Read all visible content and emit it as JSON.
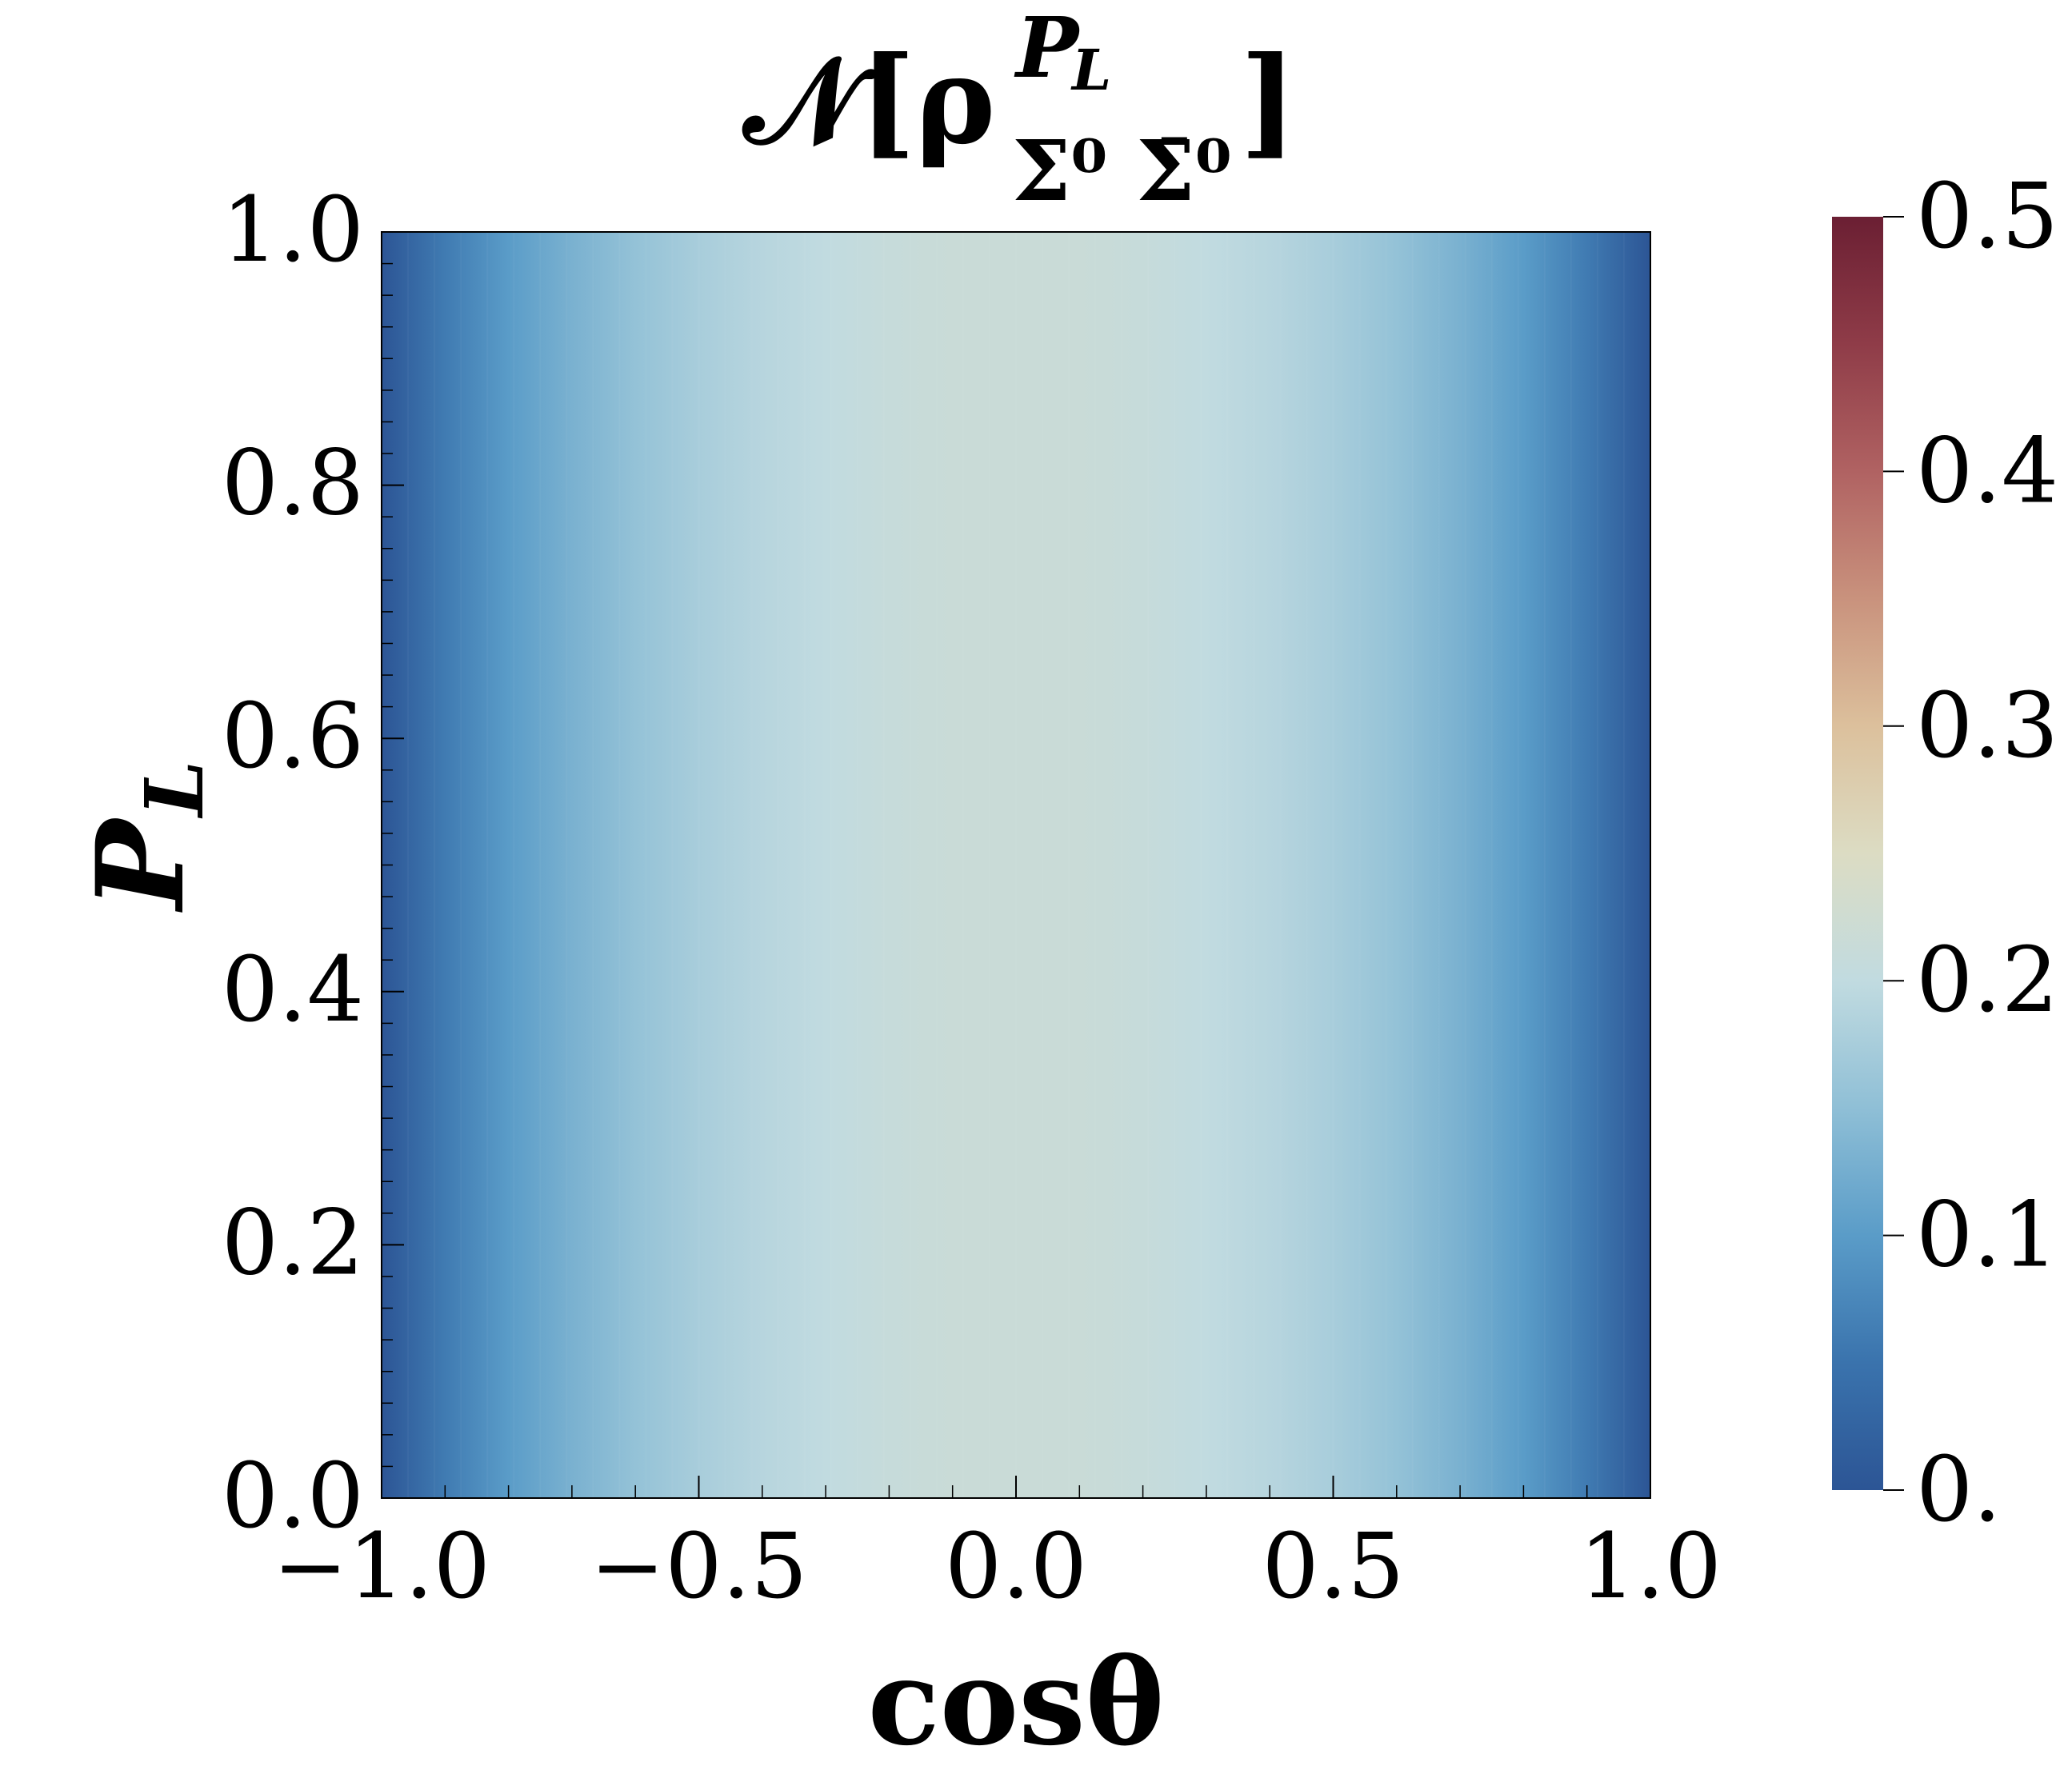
{
  "chart_data": {
    "type": "heatmap",
    "title": {
      "prefix": "𝒩[ρ",
      "superscript": "P",
      "superscript_sub": "L",
      "subscript": "Σ⁰ Σ̄⁰",
      "suffix": "]"
    },
    "xlabel": "cosθ",
    "ylabel": {
      "main": "P",
      "sub": "L"
    },
    "xlim": [
      -1.0,
      1.0
    ],
    "ylim": [
      0.0,
      1.0
    ],
    "x_ticks": [
      -1.0,
      -0.5,
      0.0,
      0.5,
      1.0
    ],
    "x_tick_labels": [
      "−1.0",
      "−0.5",
      "0.0",
      "0.5",
      "1.0"
    ],
    "y_ticks": [
      0.0,
      0.2,
      0.4,
      0.6,
      0.8,
      1.0
    ],
    "y_tick_labels": [
      "0.0",
      "0.2",
      "0.4",
      "0.6",
      "0.8",
      "1.0"
    ],
    "colorbar": {
      "range": [
        0.0,
        0.5
      ],
      "ticks": [
        0.0,
        0.1,
        0.2,
        0.3,
        0.4,
        0.5
      ],
      "tick_labels": [
        "0.",
        "0.1",
        "0.2",
        "0.3",
        "0.4",
        "0.5"
      ],
      "colormap": "RdYlBu_r",
      "stops": [
        [
          0.0,
          "#2c5595"
        ],
        [
          0.1,
          "#3a73ad"
        ],
        [
          0.2,
          "#5a9cc8"
        ],
        [
          0.3,
          "#8fbfd6"
        ],
        [
          0.4,
          "#c1dbe0"
        ],
        [
          0.5,
          "#dcdcc3"
        ],
        [
          0.6,
          "#dcc09c"
        ],
        [
          0.7,
          "#c9927d"
        ],
        [
          0.8,
          "#b06262"
        ],
        [
          0.9,
          "#8f3c48"
        ],
        [
          1.0,
          "#6b1f33"
        ]
      ]
    },
    "grid": false,
    "field_profile": {
      "description_of_values": "value depends only on cosθ (constant in P_L)",
      "cos_theta": [
        -1.0,
        -0.9,
        -0.8,
        -0.7,
        -0.6,
        -0.5,
        -0.4,
        -0.3,
        -0.2,
        -0.1,
        0.0,
        0.1,
        0.2,
        0.3,
        0.4,
        0.5,
        0.6,
        0.7,
        0.8,
        0.9,
        1.0
      ],
      "value": [
        0.0,
        0.06,
        0.1,
        0.13,
        0.155,
        0.175,
        0.19,
        0.2,
        0.21,
        0.215,
        0.215,
        0.215,
        0.21,
        0.2,
        0.19,
        0.175,
        0.155,
        0.13,
        0.1,
        0.06,
        0.0
      ]
    }
  }
}
